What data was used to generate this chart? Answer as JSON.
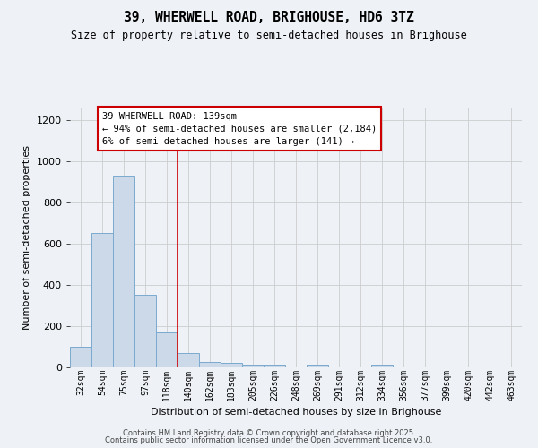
{
  "title1": "39, WHERWELL ROAD, BRIGHOUSE, HD6 3TZ",
  "title2": "Size of property relative to semi-detached houses in Brighouse",
  "xlabel": "Distribution of semi-detached houses by size in Brighouse",
  "ylabel": "Number of semi-detached properties",
  "bar_color": "#ccd9e8",
  "bar_edge_color": "#7aaad0",
  "categories": [
    "32sqm",
    "54sqm",
    "75sqm",
    "97sqm",
    "118sqm",
    "140sqm",
    "162sqm",
    "183sqm",
    "205sqm",
    "226sqm",
    "248sqm",
    "269sqm",
    "291sqm",
    "312sqm",
    "334sqm",
    "356sqm",
    "377sqm",
    "399sqm",
    "420sqm",
    "442sqm",
    "463sqm"
  ],
  "values": [
    100,
    650,
    930,
    350,
    170,
    70,
    25,
    20,
    15,
    15,
    0,
    15,
    0,
    0,
    15,
    0,
    0,
    0,
    0,
    0,
    0
  ],
  "ylim": [
    0,
    1260
  ],
  "yticks": [
    0,
    200,
    400,
    600,
    800,
    1000,
    1200
  ],
  "annotation_title": "39 WHERWELL ROAD: 139sqm",
  "annotation_line1": "← 94% of semi-detached houses are smaller (2,184)",
  "annotation_line2": "6% of semi-detached houses are larger (141) →",
  "property_line_x": 4.5,
  "annotation_box_facecolor": "#ffffff",
  "annotation_box_edgecolor": "#cc0000",
  "grid_color": "#cccccc",
  "background_color": "#eef2f7",
  "footer1": "Contains HM Land Registry data © Crown copyright and database right 2025.",
  "footer2": "Contains public sector information licensed under the Open Government Licence v3.0."
}
